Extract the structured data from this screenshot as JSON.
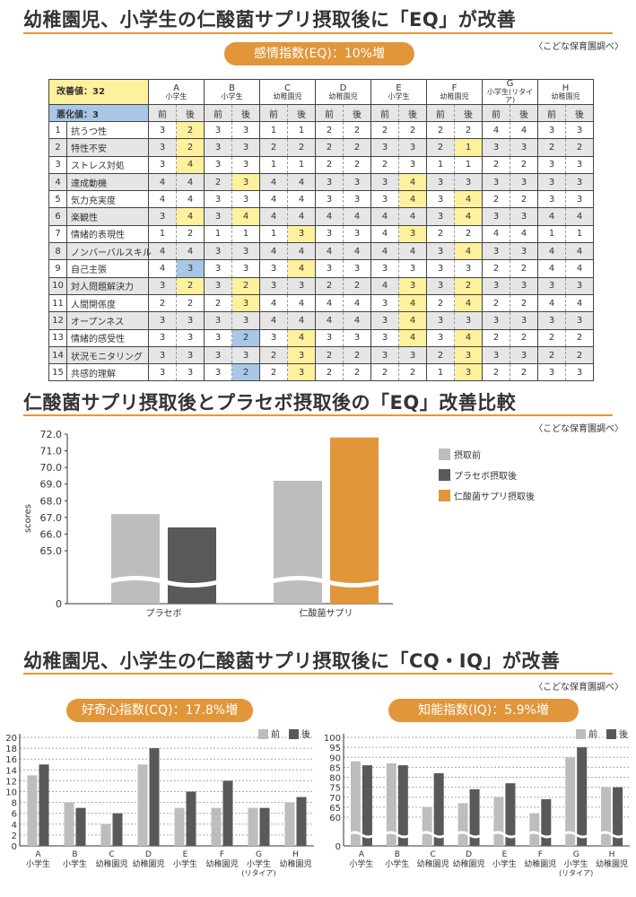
{
  "colors": {
    "accent": "#e1963a",
    "before": "#bdbdbd",
    "placebo": "#58595b",
    "after": "#e1963a",
    "highlight_yellow": "#fdf19d",
    "highlight_blue": "#a8c6e6"
  },
  "section1": {
    "title": "幼稚園児、小学生の仁酸菌サプリ摂取後に「EQ」が改善",
    "source": "〈こどな保育園調べ〉",
    "pill": "感情指数(EQ)：10%増",
    "improved_label": "改善値：32",
    "worsened_label": "悪化値：3",
    "before_label": "前",
    "after_label": "後",
    "groups": [
      {
        "letter": "A",
        "type": "小学生"
      },
      {
        "letter": "B",
        "type": "小学生"
      },
      {
        "letter": "C",
        "type": "幼稚園児"
      },
      {
        "letter": "D",
        "type": "幼稚園児"
      },
      {
        "letter": "E",
        "type": "小学生"
      },
      {
        "letter": "F",
        "type": "幼稚園児"
      },
      {
        "letter": "G",
        "type": "小学生(リタイア)"
      },
      {
        "letter": "H",
        "type": "幼稚園児"
      }
    ],
    "rows": [
      {
        "no": "1",
        "name": "抗うつ性",
        "values": [
          "3",
          "2",
          "3",
          "3",
          "1",
          "1",
          "2",
          "2",
          "2",
          "2",
          "2",
          "2",
          "4",
          "4",
          "3",
          "3"
        ],
        "hl": {
          "1": "y"
        }
      },
      {
        "no": "2",
        "name": "特性不安",
        "values": [
          "3",
          "2",
          "3",
          "3",
          "2",
          "2",
          "2",
          "2",
          "3",
          "3",
          "2",
          "1",
          "3",
          "3",
          "2",
          "2"
        ],
        "hl": {
          "1": "y",
          "11": "y"
        }
      },
      {
        "no": "3",
        "name": "ストレス対処",
        "values": [
          "3",
          "4",
          "3",
          "3",
          "1",
          "1",
          "2",
          "2",
          "2",
          "3",
          "1",
          "1",
          "2",
          "2",
          "3",
          "3"
        ],
        "hl": {
          "1": "y"
        }
      },
      {
        "no": "4",
        "name": "達成動機",
        "values": [
          "4",
          "4",
          "2",
          "3",
          "4",
          "4",
          "3",
          "3",
          "3",
          "4",
          "3",
          "3",
          "3",
          "3",
          "3",
          "3"
        ],
        "hl": {
          "3": "y",
          "9": "y"
        }
      },
      {
        "no": "5",
        "name": "気力充実度",
        "values": [
          "4",
          "4",
          "3",
          "3",
          "4",
          "4",
          "3",
          "3",
          "3",
          "4",
          "3",
          "4",
          "2",
          "2",
          "3",
          "3"
        ],
        "hl": {
          "9": "y",
          "11": "y"
        }
      },
      {
        "no": "6",
        "name": "楽観性",
        "values": [
          "3",
          "4",
          "3",
          "4",
          "4",
          "4",
          "4",
          "4",
          "4",
          "4",
          "3",
          "4",
          "3",
          "3",
          "4",
          "4"
        ],
        "hl": {
          "1": "y",
          "3": "y",
          "11": "y"
        }
      },
      {
        "no": "7",
        "name": "情緒的表現性",
        "values": [
          "1",
          "2",
          "1",
          "1",
          "1",
          "3",
          "3",
          "3",
          "4",
          "3",
          "2",
          "2",
          "4",
          "4",
          "1",
          "1"
        ],
        "hl": {
          "5": "y",
          "9": "y"
        }
      },
      {
        "no": "8",
        "name": "ノンバーバルスキル",
        "values": [
          "4",
          "4",
          "3",
          "3",
          "4",
          "4",
          "4",
          "4",
          "4",
          "4",
          "3",
          "4",
          "3",
          "3",
          "4",
          "4"
        ],
        "hl": {
          "11": "y"
        }
      },
      {
        "no": "9",
        "name": "自己主張",
        "values": [
          "4",
          "3",
          "3",
          "3",
          "3",
          "4",
          "3",
          "3",
          "3",
          "3",
          "3",
          "3",
          "2",
          "2",
          "4",
          "4"
        ],
        "hl": {
          "1": "b",
          "5": "y"
        }
      },
      {
        "no": "10",
        "name": "対人問題解決力",
        "values": [
          "3",
          "2",
          "3",
          "2",
          "3",
          "3",
          "2",
          "2",
          "4",
          "3",
          "3",
          "2",
          "3",
          "3",
          "3",
          "3"
        ],
        "hl": {
          "1": "y",
          "3": "y",
          "9": "y",
          "11": "y"
        }
      },
      {
        "no": "11",
        "name": "人間関係度",
        "values": [
          "2",
          "2",
          "2",
          "3",
          "4",
          "4",
          "4",
          "4",
          "3",
          "4",
          "2",
          "4",
          "2",
          "2",
          "4",
          "4"
        ],
        "hl": {
          "3": "y",
          "9": "y",
          "11": "y"
        }
      },
      {
        "no": "12",
        "name": "オープンネス",
        "values": [
          "3",
          "3",
          "3",
          "3",
          "4",
          "4",
          "4",
          "4",
          "3",
          "4",
          "3",
          "3",
          "3",
          "3",
          "3",
          "3"
        ],
        "hl": {
          "9": "y"
        }
      },
      {
        "no": "13",
        "name": "情緒的感受性",
        "values": [
          "3",
          "3",
          "3",
          "2",
          "3",
          "4",
          "3",
          "3",
          "3",
          "4",
          "3",
          "4",
          "2",
          "2",
          "2",
          "2"
        ],
        "hl": {
          "3": "b",
          "5": "y",
          "9": "y",
          "11": "y"
        }
      },
      {
        "no": "14",
        "name": "状況モニタリング",
        "values": [
          "3",
          "3",
          "3",
          "3",
          "2",
          "3",
          "2",
          "2",
          "3",
          "3",
          "2",
          "3",
          "3",
          "3",
          "2",
          "2"
        ],
        "hl": {
          "5": "y",
          "11": "y"
        }
      },
      {
        "no": "15",
        "name": "共感的理解",
        "values": [
          "3",
          "3",
          "3",
          "2",
          "2",
          "3",
          "2",
          "2",
          "2",
          "2",
          "1",
          "3",
          "2",
          "2",
          "3",
          "3"
        ],
        "hl": {
          "3": "b",
          "5": "y",
          "11": "y"
        }
      }
    ]
  },
  "section2": {
    "title": "仁酸菌サプリ摂取後とプラセボ摂取後の「EQ」改善比較",
    "source": "〈こどな保育園調べ〉",
    "legend": [
      "摂取前",
      "プラセボ摂取後",
      "仁酸菌サプリ摂取後"
    ]
  },
  "section3": {
    "title": "幼稚園児、小学生の仁酸菌サプリ摂取後に「CQ・IQ」が改善",
    "source": "〈こどな保育園調べ〉",
    "cq_pill": "好奇心指数(CQ)：17.8%増",
    "iq_pill": "知能指数(IQ)：5.9%増",
    "legend_before": "前",
    "legend_after": "後"
  },
  "chart_data": [
    {
      "type": "bar",
      "title": "仁酸菌サプリ摂取後とプラセボ摂取後の「EQ」改善比較",
      "ylabel": "scores",
      "ylim": [
        65.0,
        72.0
      ],
      "axis_break": true,
      "yticks": [
        "72.0",
        "71.0",
        "70.0",
        "69.0",
        "68.0",
        "67.0",
        "66.0",
        "65.0",
        "0"
      ],
      "categories": [
        "プラセボ",
        "仁酸菌サプリ"
      ],
      "series": [
        {
          "name": "摂取前",
          "values": [
            67.2,
            69.2
          ]
        },
        {
          "name": "プラセボ摂取後",
          "values": [
            66.4,
            null
          ]
        },
        {
          "name": "仁酸菌サプリ摂取後",
          "values": [
            null,
            71.8
          ]
        }
      ]
    },
    {
      "type": "bar",
      "title": "好奇心指数(CQ)：17.8%増",
      "ylim": [
        0,
        20
      ],
      "yticks": [
        "20",
        "18",
        "16",
        "14",
        "12",
        "10",
        "8",
        "6",
        "4",
        "2",
        "0"
      ],
      "categories": [
        "A",
        "B",
        "C",
        "D",
        "E",
        "F",
        "G",
        "H"
      ],
      "category_sublabels": [
        "小学生",
        "小学生",
        "幼稚園児",
        "幼稚園児",
        "小学生",
        "幼稚園児",
        "小学生\n(リタイア)",
        "幼稚園児"
      ],
      "series": [
        {
          "name": "前",
          "values": [
            13,
            8,
            4,
            15,
            7,
            7,
            7,
            8
          ]
        },
        {
          "name": "後",
          "values": [
            15,
            7,
            6,
            18,
            10,
            12,
            7,
            9
          ]
        }
      ]
    },
    {
      "type": "bar",
      "title": "知能指数(IQ)：5.9%増",
      "ylim": [
        60,
        100
      ],
      "axis_break": true,
      "yticks": [
        "100",
        "95",
        "90",
        "85",
        "80",
        "75",
        "70",
        "65",
        "60",
        "0"
      ],
      "categories": [
        "A",
        "B",
        "C",
        "D",
        "E",
        "F",
        "G",
        "H"
      ],
      "category_sublabels": [
        "小学生",
        "小学生",
        "幼稚園児",
        "幼稚園児",
        "小学生",
        "幼稚園児",
        "小学生\n(リタイア)",
        "幼稚園児"
      ],
      "series": [
        {
          "name": "前",
          "values": [
            88,
            87,
            65,
            67,
            70,
            62,
            90,
            75
          ]
        },
        {
          "name": "後",
          "values": [
            86,
            86,
            82,
            74,
            77,
            69,
            95,
            75
          ]
        }
      ]
    }
  ]
}
